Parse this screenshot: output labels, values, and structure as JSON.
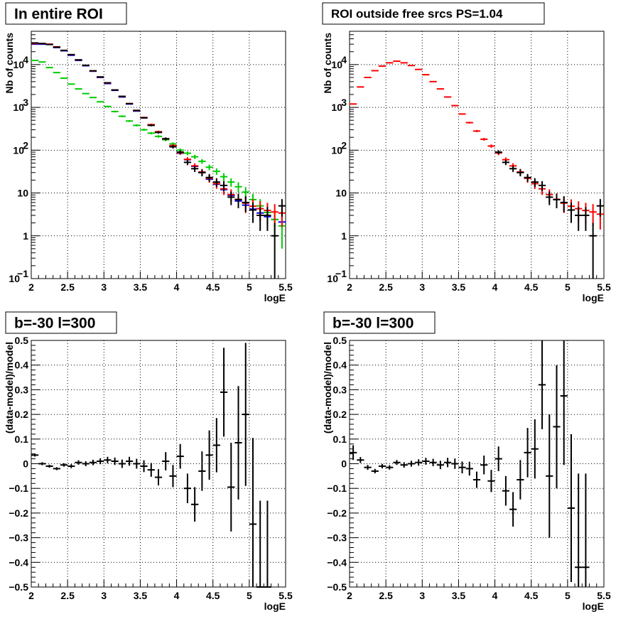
{
  "chart_data": [
    {
      "type": "scatter",
      "title": "In entire ROI",
      "xlabel": "logE",
      "ylabel": "Nb of counts",
      "xlim": [
        2,
        5.5
      ],
      "ylim": [
        0.1,
        60000
      ],
      "y_scale": "log",
      "grid": true,
      "x_ticks": [
        "2",
        "2.5",
        "3",
        "3.5",
        "4",
        "4.5",
        "5",
        "5.5"
      ],
      "y_ticks": [
        {
          "v": 0.1,
          "b": "10",
          "e": "−1"
        },
        {
          "v": 1,
          "b": "1",
          "e": ""
        },
        {
          "v": 10,
          "b": "10",
          "e": ""
        },
        {
          "v": 100,
          "b": "10",
          "e": "2"
        },
        {
          "v": 1000,
          "b": "10",
          "e": "3"
        },
        {
          "v": 10000,
          "b": "10",
          "e": "4"
        }
      ],
      "series": [
        {
          "color": "#0000ff",
          "x": [
            2.05,
            2.15,
            2.25,
            2.35,
            2.45,
            2.55,
            2.65,
            2.75,
            2.85,
            2.95,
            3.05,
            3.15,
            3.25,
            3.35,
            3.45,
            3.55,
            3.65,
            3.75,
            3.85,
            3.95,
            4.05,
            4.15,
            4.25,
            4.35,
            4.45,
            4.55,
            4.65,
            4.75,
            4.85,
            4.95,
            5.05,
            5.15,
            5.25,
            5.35,
            5.45
          ],
          "y": [
            30000,
            30000,
            29500,
            25000,
            21000,
            16500,
            12500,
            9400,
            7000,
            5000,
            3600,
            2500,
            1750,
            1200,
            820,
            570,
            390,
            265,
            180,
            125,
            85,
            60,
            42,
            30,
            21,
            16,
            12,
            8.8,
            6.5,
            5.2,
            4.2,
            3.4,
            2.8,
            2.4,
            2.1
          ]
        },
        {
          "color": "#00cc00",
          "x": [
            2.05,
            2.15,
            2.25,
            2.35,
            2.45,
            2.55,
            2.65,
            2.75,
            2.85,
            2.95,
            3.05,
            3.15,
            3.25,
            3.35,
            3.45,
            3.55,
            3.65,
            3.75,
            3.85,
            3.95,
            4.05,
            4.15,
            4.25,
            4.35,
            4.45,
            4.55,
            4.65,
            4.75,
            4.85,
            4.95,
            5.05,
            5.15,
            5.25,
            5.35,
            5.45
          ],
          "y": [
            12500,
            11500,
            8500,
            6500,
            4800,
            3500,
            2700,
            2100,
            1700,
            1350,
            1050,
            800,
            620,
            480,
            380,
            300,
            250,
            210,
            175,
            140,
            100,
            85,
            70,
            55,
            40,
            32,
            24,
            18,
            14,
            10.5,
            7,
            5,
            3.5,
            2.4,
            1.7
          ],
          "yerr": [
            150,
            140,
            120,
            100,
            90,
            80,
            70,
            60,
            50,
            45,
            40,
            35,
            30,
            25,
            22,
            18,
            16,
            14,
            13,
            12,
            10,
            9,
            8,
            7,
            6,
            5.5,
            5,
            4,
            3.8,
            3.2,
            2.6,
            2.2,
            1.9,
            1.5,
            1.2
          ]
        },
        {
          "color": "#ff0000",
          "x": [
            2.05,
            2.15,
            2.25,
            2.35,
            2.45,
            2.55,
            2.65,
            2.75,
            2.85,
            2.95,
            3.05,
            3.15,
            3.25,
            3.35,
            3.45,
            3.55,
            3.65,
            3.75,
            3.85,
            3.95,
            4.05,
            4.15,
            4.25,
            4.35,
            4.45,
            4.55,
            4.65,
            4.75,
            4.85,
            4.95,
            5.05,
            5.15,
            5.25,
            5.35,
            5.45
          ],
          "y": [
            31000,
            31000,
            30000,
            26000,
            21500,
            17000,
            12800,
            9600,
            7100,
            5100,
            3700,
            2550,
            1800,
            1230,
            840,
            580,
            395,
            270,
            184,
            128,
            87,
            61,
            43,
            31,
            22,
            16.5,
            12.5,
            9.2,
            7.1,
            5.8,
            4.9,
            4.3,
            3.9,
            3.6,
            3.4
          ],
          "yerr": [
            170,
            170,
            170,
            160,
            140,
            130,
            110,
            100,
            85,
            70,
            60,
            50,
            42,
            35,
            29,
            24,
            20,
            16,
            13.5,
            11,
            9.2,
            7.8,
            6.5,
            5.5,
            4.6,
            4,
            3.5,
            3,
            2.6,
            2.4,
            2.2,
            2.1,
            2,
            1.9,
            1.8
          ]
        },
        {
          "color": "#000000",
          "x": [
            2.05,
            2.15,
            2.25,
            2.35,
            2.45,
            2.55,
            2.65,
            2.75,
            2.85,
            2.95,
            3.05,
            3.15,
            3.25,
            3.35,
            3.45,
            3.55,
            3.65,
            3.75,
            3.85,
            3.95,
            4.05,
            4.15,
            4.25,
            4.35,
            4.45,
            4.55,
            4.65,
            4.75,
            4.85,
            4.95,
            5.05,
            5.15,
            5.25,
            5.35,
            5.45
          ],
          "y": [
            32000,
            31000,
            29500,
            25500,
            21400,
            17100,
            12900,
            9600,
            7150,
            5150,
            3750,
            2550,
            1810,
            1220,
            850,
            570,
            380,
            260,
            185,
            120,
            90,
            52,
            37,
            30,
            23,
            18,
            15,
            8,
            7,
            6,
            4,
            3,
            3,
            1,
            5
          ],
          "yerr": [
            180,
            175,
            170,
            160,
            145,
            130,
            115,
            100,
            85,
            72,
            61,
            51,
            43,
            35,
            29,
            24,
            19,
            16,
            13.6,
            11,
            9.5,
            7.2,
            6.1,
            5.5,
            4.8,
            4.2,
            3.9,
            2.8,
            2.6,
            2.4,
            2,
            1.7,
            1.7,
            1,
            2.2
          ]
        }
      ]
    },
    {
      "type": "scatter",
      "title": "ROI outside free srcs PS=1.04",
      "xlabel": "logE",
      "ylabel": "Nb of counts",
      "xlim": [
        2,
        5.5
      ],
      "ylim": [
        0.1,
        60000
      ],
      "y_scale": "log",
      "grid": true,
      "x_ticks": [
        "2",
        "2.5",
        "3",
        "3.5",
        "4",
        "4.5",
        "5",
        "5.5"
      ],
      "y_ticks": [
        {
          "v": 0.1,
          "b": "10",
          "e": "−1"
        },
        {
          "v": 1,
          "b": "1",
          "e": ""
        },
        {
          "v": 10,
          "b": "10",
          "e": ""
        },
        {
          "v": 100,
          "b": "10",
          "e": "2"
        },
        {
          "v": 1000,
          "b": "10",
          "e": "3"
        },
        {
          "v": 10000,
          "b": "10",
          "e": "4"
        }
      ],
      "series": [
        {
          "color": "#ff0000",
          "x": [
            2.05,
            2.15,
            2.25,
            2.35,
            2.45,
            2.55,
            2.65,
            2.75,
            2.85,
            2.95,
            3.05,
            3.15,
            3.25,
            3.35,
            3.45,
            3.55,
            3.65,
            3.75,
            3.85,
            3.95,
            4.05,
            4.15,
            4.25,
            4.35,
            4.45,
            4.55,
            4.65,
            4.75,
            4.85,
            4.95,
            5.05,
            5.15,
            5.25,
            5.35,
            5.45
          ],
          "y": [
            1200,
            3000,
            5000,
            7200,
            9200,
            11000,
            12000,
            11000,
            9500,
            7700,
            5800,
            4000,
            2700,
            1750,
            1100,
            700,
            440,
            280,
            180,
            125,
            86,
            60,
            43,
            31,
            22,
            16.5,
            12.5,
            9.2,
            7.1,
            5.8,
            4.9,
            4.3,
            3.9,
            3.6,
            3.2
          ],
          "yerr": [
            35,
            55,
            70,
            85,
            96,
            105,
            110,
            105,
            97,
            88,
            76,
            63,
            52,
            42,
            33,
            26,
            21,
            17,
            13.4,
            11.2,
            9.3,
            7.7,
            6.6,
            5.6,
            4.7,
            4.1,
            3.5,
            3,
            2.7,
            2.4,
            2.2,
            2.1,
            2,
            1.9,
            1.8
          ]
        },
        {
          "color": "#000000",
          "x": [
            4.05,
            4.15,
            4.25,
            4.35,
            4.45,
            4.55,
            4.65,
            4.75,
            4.85,
            4.95,
            5.05,
            5.15,
            5.25,
            5.35,
            5.45
          ],
          "y": [
            90,
            52,
            37,
            30,
            23,
            18,
            15,
            8,
            7,
            6,
            4,
            3,
            3,
            1,
            5
          ],
          "yerr": [
            9.5,
            7.2,
            6.1,
            5.5,
            4.8,
            4.2,
            3.9,
            2.8,
            2.6,
            2.4,
            2,
            1.7,
            1.7,
            1,
            2.2
          ]
        }
      ]
    },
    {
      "type": "scatter",
      "title": "b=-30 l=300",
      "xlabel": "logE",
      "ylabel": "(data-model)/model",
      "xlim": [
        2,
        5.5
      ],
      "ylim": [
        -0.5,
        0.5
      ],
      "y_scale": "linear",
      "grid": true,
      "x_ticks": [
        "2",
        "2.5",
        "3",
        "3.5",
        "4",
        "4.5",
        "5",
        "5.5"
      ],
      "y_ticks": [
        "−0.5",
        "−0.4",
        "−0.3",
        "−0.2",
        "−0.1",
        "0",
        "0.1",
        "0.2",
        "0.3",
        "0.4",
        "0.5"
      ],
      "series": [
        {
          "color": "#000000",
          "x": [
            2.05,
            2.15,
            2.25,
            2.35,
            2.45,
            2.55,
            2.65,
            2.75,
            2.85,
            2.95,
            3.05,
            3.15,
            3.25,
            3.35,
            3.45,
            3.55,
            3.65,
            3.75,
            3.85,
            3.95,
            4.05,
            4.15,
            4.25,
            4.35,
            4.45,
            4.55,
            4.65,
            4.75,
            4.85,
            4.95,
            5.05,
            5.15,
            5.25
          ],
          "y": [
            0.035,
            0.0,
            -0.01,
            -0.02,
            -0.005,
            -0.01,
            0.005,
            0.0,
            0.005,
            0.01,
            0.015,
            0.01,
            0.0,
            0.01,
            0.0,
            -0.01,
            -0.025,
            -0.055,
            0.01,
            -0.05,
            0.03,
            -0.1,
            -0.165,
            -0.03,
            0.035,
            0.075,
            0.29,
            -0.095,
            0.085,
            0.2,
            -0.245,
            -0.5,
            -0.5
          ],
          "yerr": [
            0.006,
            0.006,
            0.006,
            0.006,
            0.007,
            0.008,
            0.009,
            0.01,
            0.011,
            0.012,
            0.013,
            0.015,
            0.017,
            0.018,
            0.02,
            0.024,
            0.028,
            0.033,
            0.037,
            0.045,
            0.05,
            0.06,
            0.07,
            0.08,
            0.1,
            0.11,
            0.18,
            0.18,
            0.23,
            0.29,
            0.35,
            0.35,
            0.35
          ]
        }
      ]
    },
    {
      "type": "scatter",
      "title": "b=-30 l=300",
      "xlabel": "logE",
      "ylabel": "(data-model)/model",
      "xlim": [
        2,
        5.5
      ],
      "ylim": [
        -0.5,
        0.5
      ],
      "y_scale": "linear",
      "grid": true,
      "x_ticks": [
        "2",
        "2.5",
        "3",
        "3.5",
        "4",
        "4.5",
        "5",
        "5.5"
      ],
      "y_ticks": [
        "−0.5",
        "−0.4",
        "−0.3",
        "−0.2",
        "−0.1",
        "0",
        "0.1",
        "0.2",
        "0.3",
        "0.4",
        "0.5"
      ],
      "series": [
        {
          "color": "#000000",
          "x": [
            2.05,
            2.15,
            2.25,
            2.35,
            2.45,
            2.55,
            2.65,
            2.75,
            2.85,
            2.95,
            3.05,
            3.15,
            3.25,
            3.35,
            3.45,
            3.55,
            3.65,
            3.75,
            3.85,
            3.95,
            4.05,
            4.15,
            4.25,
            4.35,
            4.45,
            4.55,
            4.65,
            4.75,
            4.85,
            4.95,
            5.05,
            5.15,
            5.25
          ],
          "y": [
            0.045,
            0.015,
            -0.015,
            -0.03,
            -0.01,
            -0.015,
            0.005,
            -0.005,
            0.0,
            0.005,
            0.01,
            0.005,
            -0.005,
            0.005,
            0.0,
            -0.015,
            -0.02,
            -0.065,
            -0.005,
            -0.07,
            0.02,
            -0.11,
            -0.185,
            -0.065,
            0.045,
            0.06,
            0.32,
            -0.05,
            0.15,
            0.275,
            -0.18,
            -0.42,
            -0.42
          ],
          "yerr": [
            0.03,
            0.012,
            0.01,
            0.009,
            0.009,
            0.009,
            0.01,
            0.011,
            0.012,
            0.013,
            0.014,
            0.015,
            0.017,
            0.019,
            0.021,
            0.024,
            0.028,
            0.033,
            0.038,
            0.045,
            0.05,
            0.06,
            0.07,
            0.08,
            0.1,
            0.12,
            0.18,
            0.25,
            0.25,
            0.28,
            0.3,
            0.38,
            0.38
          ]
        }
      ]
    }
  ]
}
